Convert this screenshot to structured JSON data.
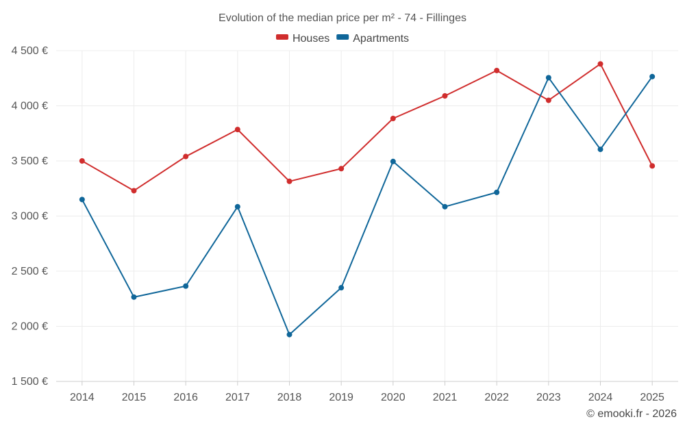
{
  "chart_data": {
    "type": "line",
    "title": "Evolution of the median price per m² - 74 - Fillinges",
    "categories": [
      "2014",
      "2015",
      "2016",
      "2017",
      "2018",
      "2019",
      "2020",
      "2021",
      "2022",
      "2023",
      "2024",
      "2025"
    ],
    "series": [
      {
        "name": "Houses",
        "color": "#d02d2d",
        "values": [
          3500,
          3230,
          3540,
          3785,
          3315,
          3430,
          3885,
          4090,
          4320,
          4050,
          4380,
          3455
        ]
      },
      {
        "name": "Apartments",
        "color": "#0f6699",
        "values": [
          3150,
          2265,
          2365,
          3085,
          1925,
          2350,
          3495,
          3085,
          3215,
          4255,
          3605,
          4265
        ]
      }
    ],
    "ylim": [
      1500,
      4500
    ],
    "yticks": [
      1500,
      2000,
      2500,
      3000,
      3500,
      4000,
      4500
    ],
    "ytick_labels": [
      "1 500 €",
      "2 000 €",
      "2 500 €",
      "3 000 €",
      "3 500 €",
      "4 000 €",
      "4 500 €"
    ],
    "xlabel": "",
    "ylabel": "",
    "grid": true,
    "legend_position": "top-center"
  },
  "credit": "© emooki.fr - 2026"
}
